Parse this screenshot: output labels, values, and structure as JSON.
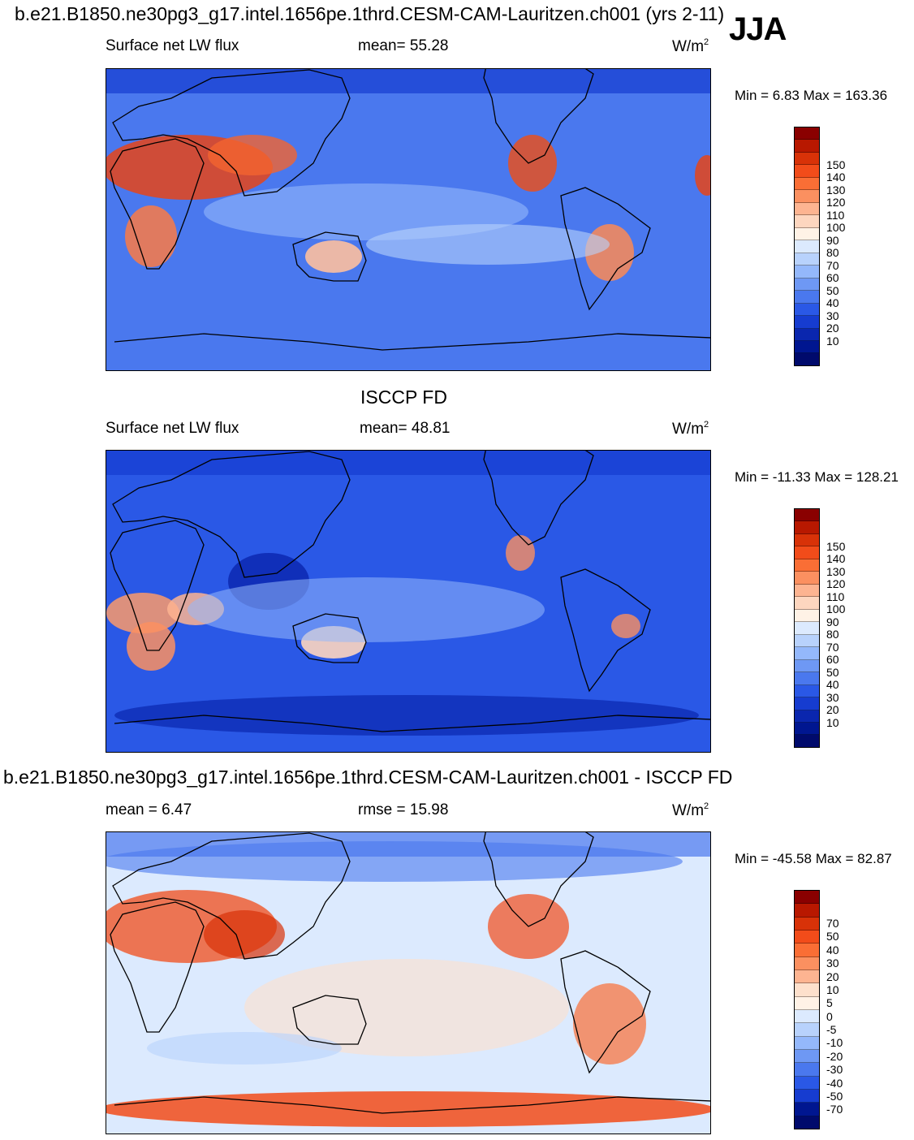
{
  "page": {
    "case_title": "b.e21.B1850.ne30pg3_g17.intel.1656pe.1thrd.CESM-CAM-Lauritzen.ch001 (yrs 2-11)",
    "season": "JJA"
  },
  "panels": [
    {
      "id": "model",
      "header": "",
      "left_label": "Surface net LW flux",
      "center_label": "mean=  55.28",
      "unit_base": "W/m",
      "unit_exp": "2",
      "min_max": "Min =    6.83 Max = 163.36",
      "palette": [
        "#8a0000",
        "#b81800",
        "#d83208",
        "#f24c1a",
        "#fa6e35",
        "#fb9060",
        "#fdb491",
        "#fdd6bf",
        "#fff2e6",
        "#dceafe",
        "#b8d2fc",
        "#94b8fb",
        "#6e98f4",
        "#4a78ee",
        "#2a58e6",
        "#163cd0",
        "#0a26ae",
        "#001690",
        "#000a6c"
      ],
      "ticks": [
        "150",
        "140",
        "130",
        "120",
        "110",
        "100",
        "90",
        "80",
        "70",
        "60",
        "50",
        "40",
        "30",
        "20",
        "10"
      ],
      "map_theme": "model"
    },
    {
      "id": "obs",
      "header": "ISCCP FD",
      "left_label": "Surface net LW flux",
      "center_label": "mean=  48.81",
      "unit_base": "W/m",
      "unit_exp": "2",
      "min_max": "Min = -11.33 Max = 128.21",
      "palette": [
        "#8a0000",
        "#b81800",
        "#d83208",
        "#f24c1a",
        "#fa6e35",
        "#fb9060",
        "#fdb491",
        "#fdd6bf",
        "#fff2e6",
        "#dceafe",
        "#b8d2fc",
        "#94b8fb",
        "#6e98f4",
        "#4a78ee",
        "#2a58e6",
        "#163cd0",
        "#0a26ae",
        "#001690",
        "#000a6c"
      ],
      "ticks": [
        "150",
        "140",
        "130",
        "120",
        "110",
        "100",
        "90",
        "80",
        "70",
        "60",
        "50",
        "40",
        "30",
        "20",
        "10"
      ],
      "map_theme": "obs"
    },
    {
      "id": "diff",
      "header": "b.e21.B1850.ne30pg3_g17.intel.1656pe.1thrd.CESM-CAM-Lauritzen.ch001 - ISCCP FD",
      "left_label": "mean =    6.47",
      "center_label": "rmse =   15.98",
      "unit_base": "W/m",
      "unit_exp": "2",
      "min_max": "Min = -45.58 Max =  82.87",
      "palette": [
        "#8a0000",
        "#b81800",
        "#d83208",
        "#f24c1a",
        "#fa6e35",
        "#fb9060",
        "#fdb491",
        "#fde0cc",
        "#fff2e6",
        "#dceafe",
        "#b8d2fc",
        "#94b8fb",
        "#6e98f4",
        "#4a78ee",
        "#2a58e6",
        "#163cd0",
        "#001690",
        "#000a6c"
      ],
      "ticks": [
        "70",
        "50",
        "40",
        "30",
        "20",
        "10",
        "5",
        "0",
        "-5",
        "-10",
        "-20",
        "-30",
        "-40",
        "-50",
        "-70"
      ],
      "map_theme": "diff"
    }
  ]
}
